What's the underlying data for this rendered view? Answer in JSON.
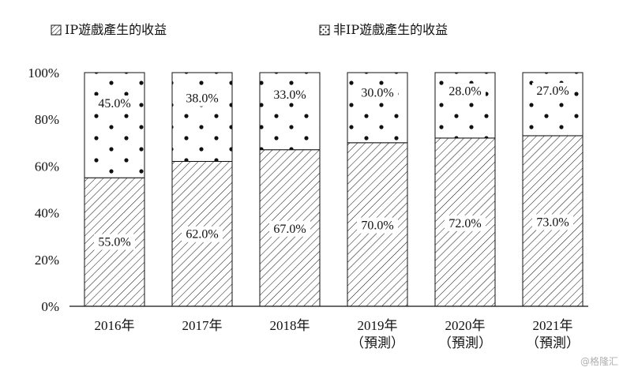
{
  "chart_data": {
    "type": "bar",
    "stacked": true,
    "percent": true,
    "categories": [
      "2016年",
      "2017年",
      "2018年",
      "2019年\n（預測）",
      "2020年\n（預測）",
      "2021年\n（預測）"
    ],
    "series": [
      {
        "name": "IP遊戲產生的收益",
        "pattern": "hatch",
        "values": [
          55.0,
          62.0,
          67.0,
          70.0,
          72.0,
          73.0
        ],
        "labels": [
          "55.0%",
          "62.0%",
          "67.0%",
          "70.0%",
          "72.0%",
          "73.0%"
        ]
      },
      {
        "name": "非IP遊戲產生的收益",
        "pattern": "dots",
        "values": [
          45.0,
          38.0,
          33.0,
          30.0,
          28.0,
          27.0
        ],
        "labels": [
          "45.0%",
          "38.0%",
          "33.0%",
          "30.0%",
          "28.0%",
          "27.0%"
        ]
      }
    ],
    "ylim": [
      0,
      100
    ],
    "yticks": [
      0,
      20,
      40,
      60,
      80,
      100
    ],
    "ytick_labels": [
      "0%",
      "20%",
      "40%",
      "60%",
      "80%",
      "100%"
    ],
    "legend_position": "top-left",
    "grid": false
  },
  "watermark": "@格隆汇"
}
